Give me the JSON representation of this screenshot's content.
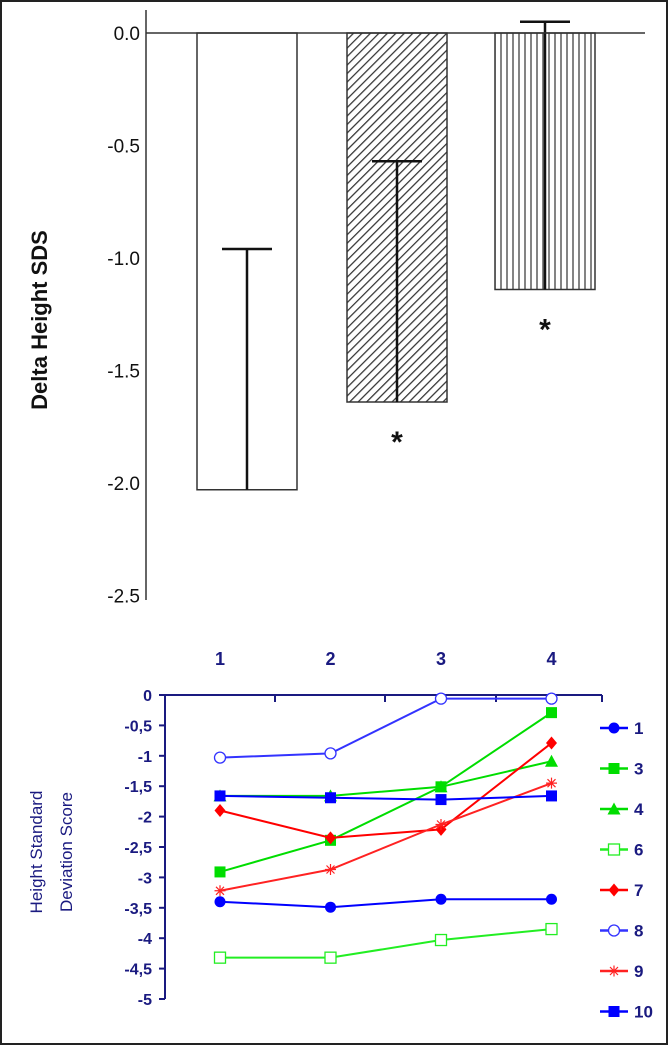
{
  "chart_data": [
    {
      "type": "bar",
      "ylabel": "Delta Height SDS",
      "xlabel": "",
      "ylim": [
        -2.5,
        0.0
      ],
      "yticks": [
        "0.0",
        "-0.5",
        "-1.0",
        "-1.5",
        "-2.0",
        "-2.5"
      ],
      "ytick_values": [
        0,
        -0.5,
        -1.0,
        -1.5,
        -2.0,
        -2.5
      ],
      "categories": [
        "",
        "",
        ""
      ],
      "values": [
        -2.03,
        -1.64,
        -1.14
      ],
      "error_bar_ends": [
        -0.96,
        -0.57,
        0.05
      ],
      "fills": [
        "empty",
        "diagonal-hatch",
        "vertical-hatch"
      ],
      "annotations": [
        "",
        "*",
        "*"
      ],
      "grid": false
    },
    {
      "type": "line",
      "ylabel": "Height Standard Deviation Score",
      "xlabel": "",
      "x": [
        1,
        2,
        3,
        4
      ],
      "xticks": [
        "1",
        "2",
        "3",
        "4"
      ],
      "ylim": [
        -5,
        0
      ],
      "yticks": [
        "0",
        "-0,5",
        "-1",
        "-1,5",
        "-2",
        "-2,5",
        "-3",
        "-3,5",
        "-4",
        "-4,5",
        "-5"
      ],
      "ytick_values": [
        0,
        -0.5,
        -1,
        -1.5,
        -2,
        -2.5,
        -3,
        -3.5,
        -4,
        -4.5,
        -5
      ],
      "legend_position": "right",
      "grid": false,
      "series": [
        {
          "name": "1",
          "color": "#0000ff",
          "marker": "circle-filled",
          "values": [
            -3.4,
            -3.49,
            -3.36,
            -3.36
          ]
        },
        {
          "name": "3",
          "color": "#00dd00",
          "marker": "square-filled",
          "values": [
            -2.91,
            -2.39,
            -1.51,
            -0.29
          ]
        },
        {
          "name": "4",
          "color": "#00dd00",
          "marker": "triangle-filled",
          "values": [
            -1.66,
            -1.66,
            -1.51,
            -1.09
          ]
        },
        {
          "name": "6",
          "color": "#22ee22",
          "marker": "square-open",
          "values": [
            -4.32,
            -4.32,
            -4.03,
            -3.85
          ]
        },
        {
          "name": "7",
          "color": "#ff0000",
          "marker": "diamond-filled",
          "values": [
            -1.9,
            -2.35,
            -2.21,
            -0.79
          ]
        },
        {
          "name": "8",
          "color": "#3333ff",
          "marker": "circle-open",
          "values": [
            -1.03,
            -0.96,
            -0.06,
            -0.06
          ]
        },
        {
          "name": "9",
          "color": "#ff2222",
          "marker": "star",
          "values": [
            -3.22,
            -2.87,
            -2.13,
            -1.45
          ]
        },
        {
          "name": "10",
          "color": "#0000ff",
          "marker": "square-filled",
          "values": [
            -1.66,
            -1.69,
            -1.72,
            -1.66
          ]
        }
      ]
    }
  ]
}
